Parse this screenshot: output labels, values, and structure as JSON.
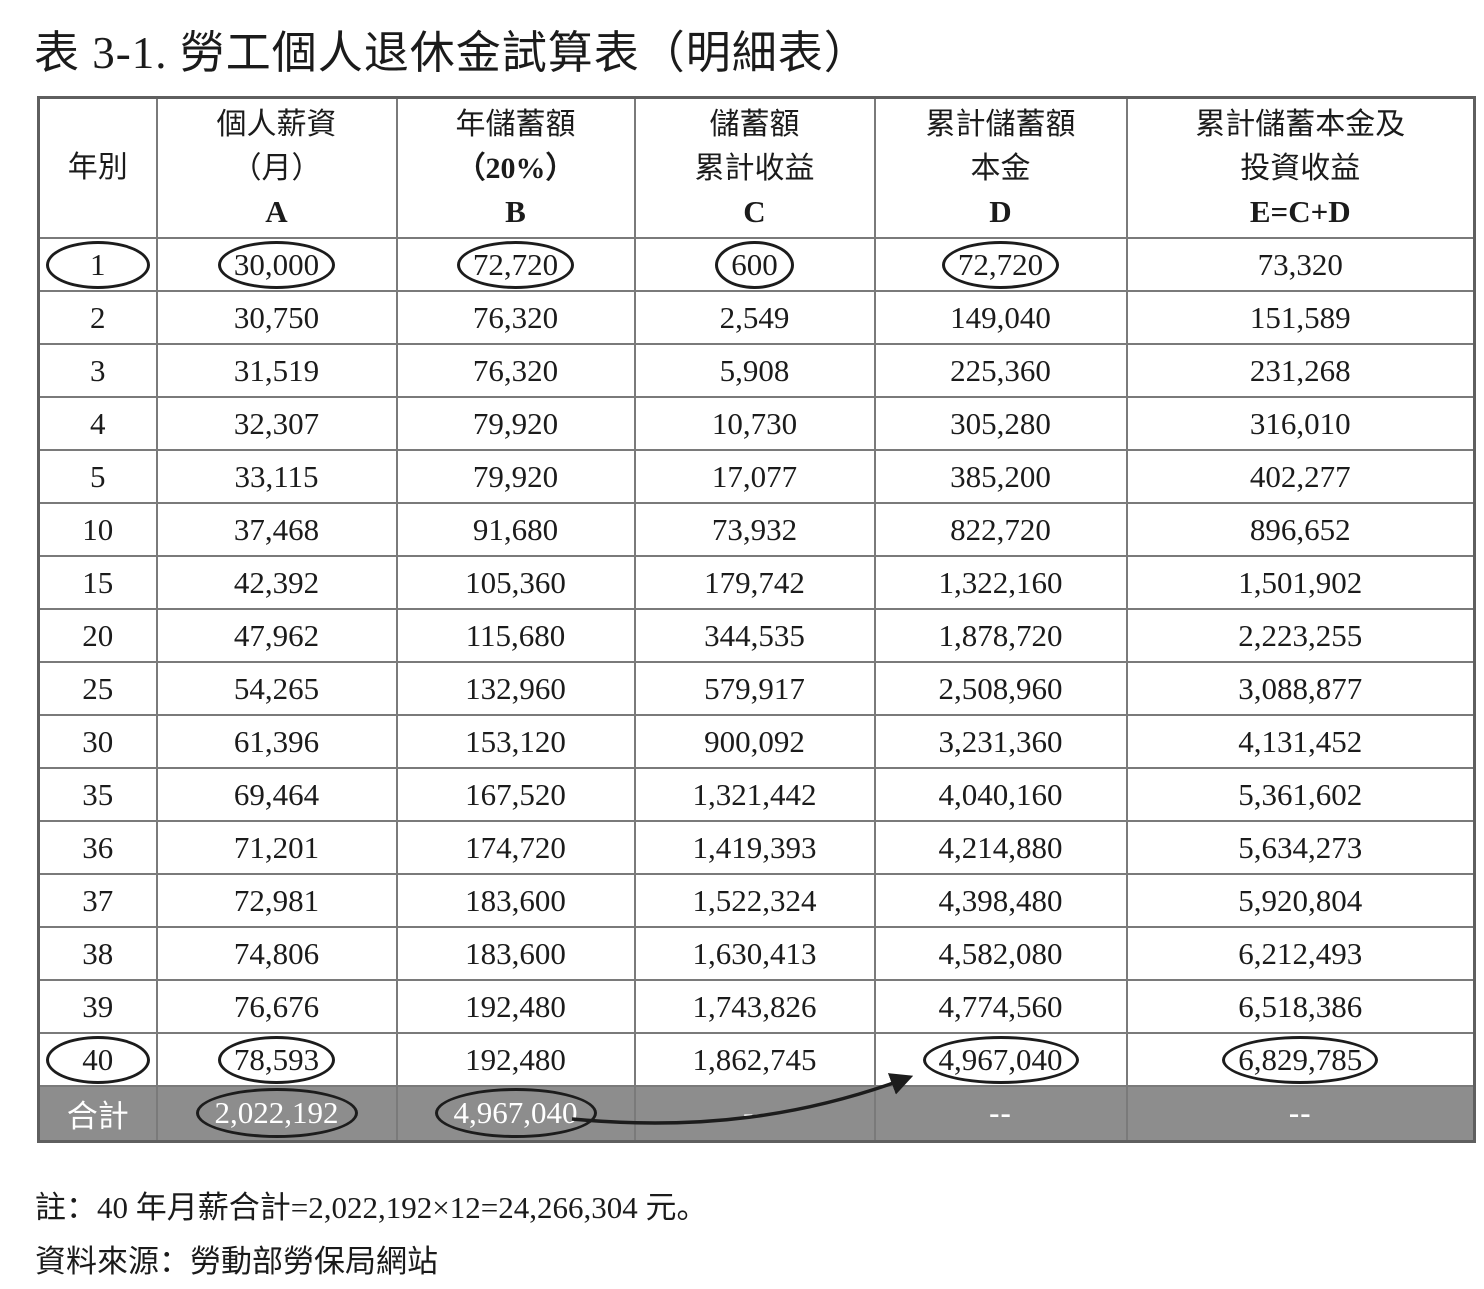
{
  "title": "表 3-1. 勞工個人退休金試算表（明細表）",
  "table": {
    "columns": [
      {
        "line1": "年別",
        "line2": "",
        "letter": ""
      },
      {
        "line1": "個人薪資",
        "line2": "（月）",
        "letter": "A"
      },
      {
        "line1": "年儲蓄額",
        "line2": "（20%）",
        "letter": "B"
      },
      {
        "line1": "儲蓄額",
        "line2": "累計收益",
        "letter": "C"
      },
      {
        "line1": "累計儲蓄額",
        "line2": "本金",
        "letter": "D"
      },
      {
        "line1": "累計儲蓄本金及",
        "line2": "投資收益",
        "letter": "E=C+D"
      }
    ],
    "rows": [
      {
        "year": "1",
        "a": "30,000",
        "b": "72,720",
        "c": "600",
        "d": "72,720",
        "e": "73,320",
        "circled": [
          "year",
          "a",
          "b",
          "c",
          "d"
        ]
      },
      {
        "year": "2",
        "a": "30,750",
        "b": "76,320",
        "c": "2,549",
        "d": "149,040",
        "e": "151,589",
        "circled": []
      },
      {
        "year": "3",
        "a": "31,519",
        "b": "76,320",
        "c": "5,908",
        "d": "225,360",
        "e": "231,268",
        "circled": []
      },
      {
        "year": "4",
        "a": "32,307",
        "b": "79,920",
        "c": "10,730",
        "d": "305,280",
        "e": "316,010",
        "circled": []
      },
      {
        "year": "5",
        "a": "33,115",
        "b": "79,920",
        "c": "17,077",
        "d": "385,200",
        "e": "402,277",
        "circled": []
      },
      {
        "year": "10",
        "a": "37,468",
        "b": "91,680",
        "c": "73,932",
        "d": "822,720",
        "e": "896,652",
        "circled": []
      },
      {
        "year": "15",
        "a": "42,392",
        "b": "105,360",
        "c": "179,742",
        "d": "1,322,160",
        "e": "1,501,902",
        "circled": []
      },
      {
        "year": "20",
        "a": "47,962",
        "b": "115,680",
        "c": "344,535",
        "d": "1,878,720",
        "e": "2,223,255",
        "circled": []
      },
      {
        "year": "25",
        "a": "54,265",
        "b": "132,960",
        "c": "579,917",
        "d": "2,508,960",
        "e": "3,088,877",
        "circled": []
      },
      {
        "year": "30",
        "a": "61,396",
        "b": "153,120",
        "c": "900,092",
        "d": "3,231,360",
        "e": "4,131,452",
        "circled": []
      },
      {
        "year": "35",
        "a": "69,464",
        "b": "167,520",
        "c": "1,321,442",
        "d": "4,040,160",
        "e": "5,361,602",
        "circled": []
      },
      {
        "year": "36",
        "a": "71,201",
        "b": "174,720",
        "c": "1,419,393",
        "d": "4,214,880",
        "e": "5,634,273",
        "circled": []
      },
      {
        "year": "37",
        "a": "72,981",
        "b": "183,600",
        "c": "1,522,324",
        "d": "4,398,480",
        "e": "5,920,804",
        "circled": []
      },
      {
        "year": "38",
        "a": "74,806",
        "b": "183,600",
        "c": "1,630,413",
        "d": "4,582,080",
        "e": "6,212,493",
        "circled": []
      },
      {
        "year": "39",
        "a": "76,676",
        "b": "192,480",
        "c": "1,743,826",
        "d": "4,774,560",
        "e": "6,518,386",
        "circled": []
      },
      {
        "year": "40",
        "a": "78,593",
        "b": "192,480",
        "c": "1,862,745",
        "d": "4,967,040",
        "e": "6,829,785",
        "circled": [
          "year",
          "a",
          "d",
          "e"
        ]
      }
    ],
    "total_row": {
      "year": "合計",
      "a": "2,022,192",
      "b": "4,967,040",
      "c": "--",
      "d": "--",
      "e": "--",
      "circled": [
        "a",
        "b"
      ]
    },
    "arrow": {
      "from": "total_row.b",
      "to": "rows.15.d"
    }
  },
  "notes": {
    "note1": "註：40 年月薪合計=2,022,192×12=24,266,304 元。",
    "note2": "資料來源：勞動部勞保局網站"
  },
  "colors": {
    "total_row_bg": "#8d8d8d",
    "total_row_text": "#ffffff",
    "grid_line": "#7a7a7a",
    "annotation_ink": "#1c1c1c"
  }
}
